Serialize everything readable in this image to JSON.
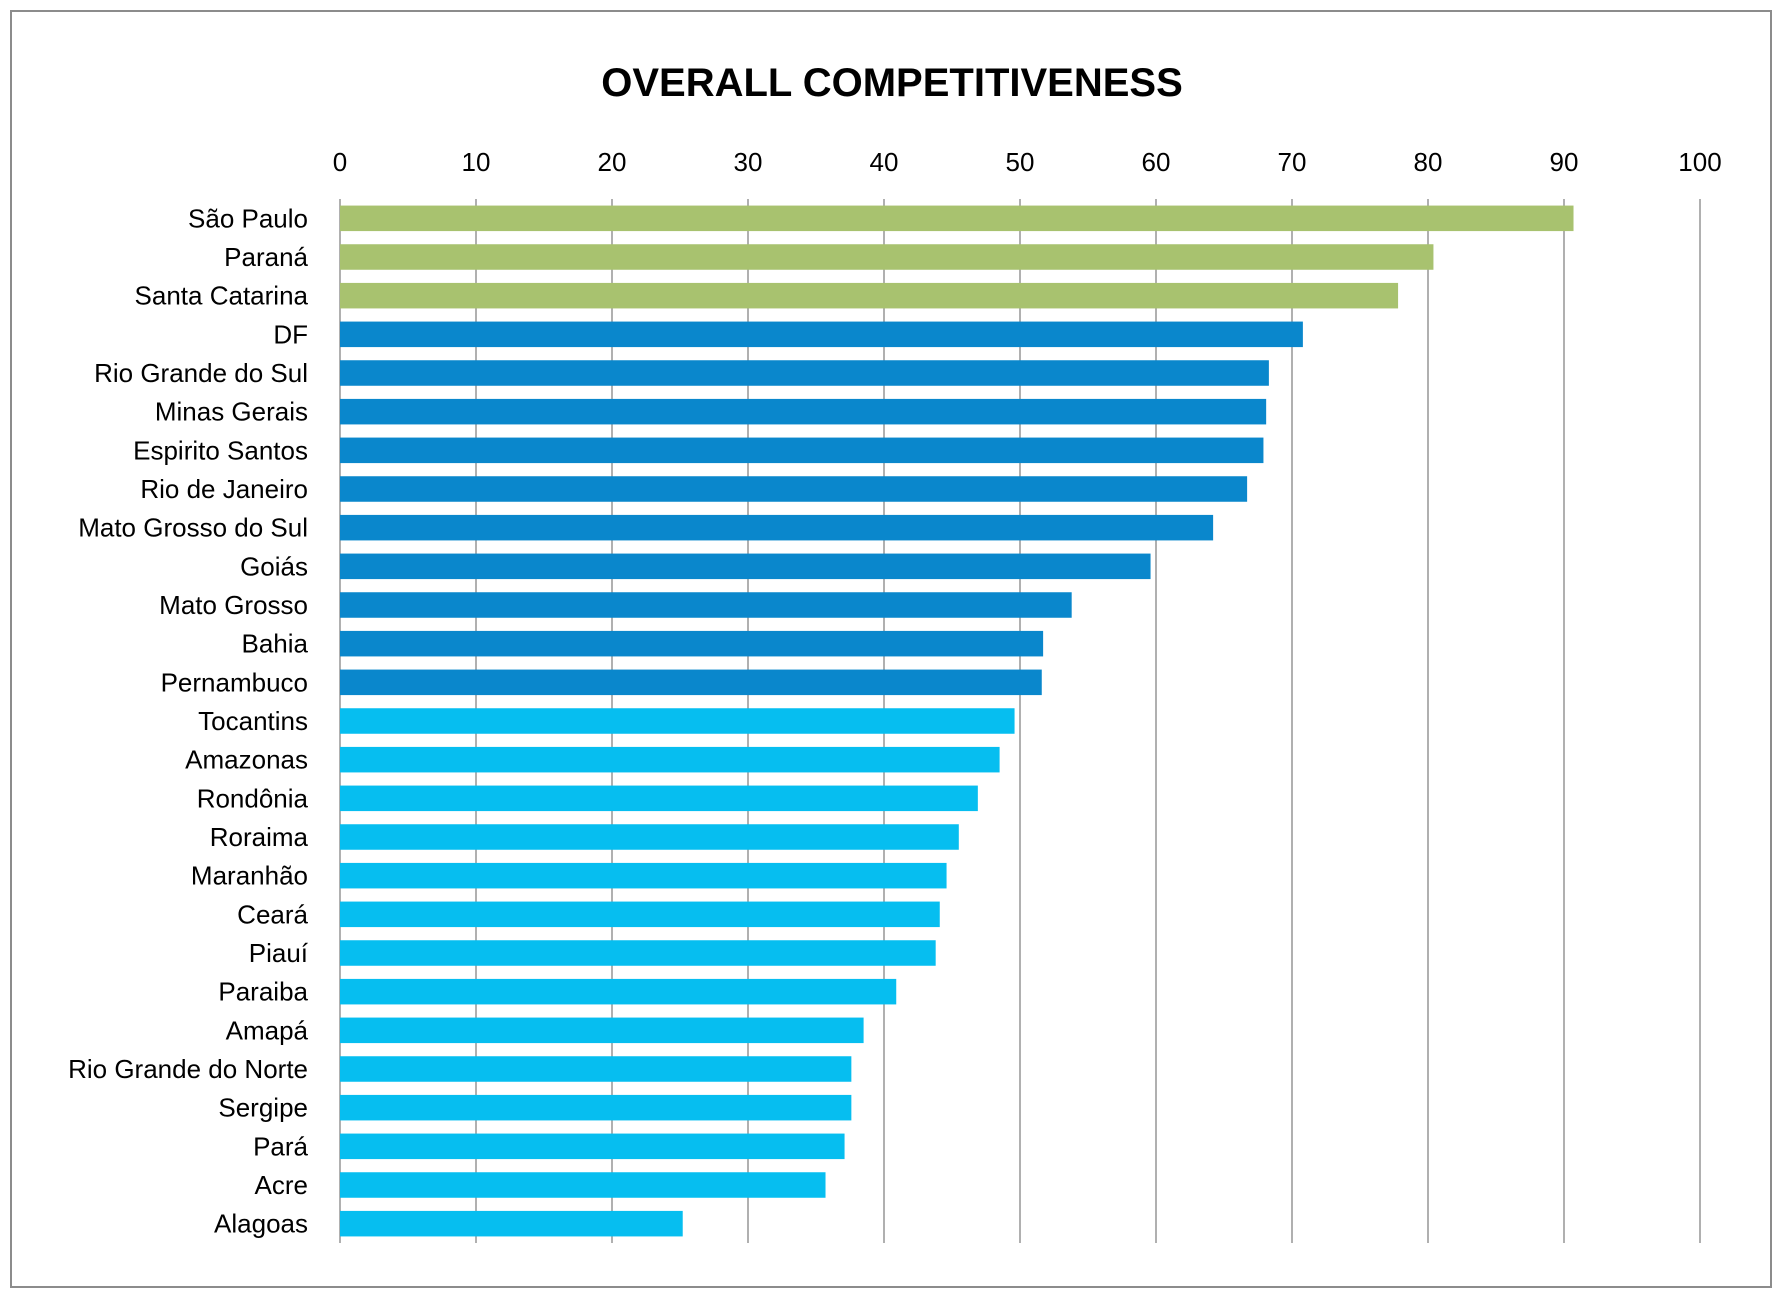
{
  "chart_data": {
    "type": "bar",
    "orientation": "horizontal",
    "title": "OVERALL COMPETITIVENESS",
    "xlabel": "",
    "ylabel": "",
    "xlim": [
      0,
      100
    ],
    "ticks": [
      "0",
      "10",
      "20",
      "30",
      "40",
      "50",
      "60",
      "70",
      "80",
      "90",
      "100"
    ],
    "grid": "vertical",
    "axis_position": "top",
    "legend": "none",
    "categories": [
      "São Paulo",
      "Paraná",
      "Santa Catarina",
      "DF",
      "Rio Grande do Sul",
      "Minas Gerais",
      "Espirito Santos",
      "Rio de Janeiro",
      "Mato Grosso do Sul",
      "Goiás",
      "Mato Grosso",
      "Bahia",
      "Pernambuco",
      "Tocantins",
      "Amazonas",
      "Rondônia",
      "Roraima",
      "Maranhão",
      "Ceará",
      "Piauí",
      "Paraiba",
      "Amapá",
      "Rio Grande do Norte",
      "Sergipe",
      "Pará",
      "Acre",
      "Alagoas"
    ],
    "values": [
      90.7,
      80.4,
      77.8,
      70.8,
      68.3,
      68.1,
      67.9,
      66.7,
      64.2,
      59.6,
      53.8,
      51.7,
      51.6,
      49.6,
      48.5,
      46.9,
      45.5,
      44.6,
      44.1,
      43.8,
      40.9,
      38.5,
      37.6,
      37.6,
      37.1,
      35.7,
      25.2
    ],
    "colors": [
      "#a8c26f",
      "#a8c26f",
      "#a8c26f",
      "#0a87cc",
      "#0a87cc",
      "#0a87cc",
      "#0a87cc",
      "#0a87cc",
      "#0a87cc",
      "#0a87cc",
      "#0a87cc",
      "#0a87cc",
      "#0a87cc",
      "#06bef0",
      "#06bef0",
      "#06bef0",
      "#06bef0",
      "#06bef0",
      "#06bef0",
      "#06bef0",
      "#06bef0",
      "#06bef0",
      "#06bef0",
      "#06bef0",
      "#06bef0",
      "#06bef0",
      "#06bef0"
    ],
    "grid_color": "#b0b0b0"
  }
}
